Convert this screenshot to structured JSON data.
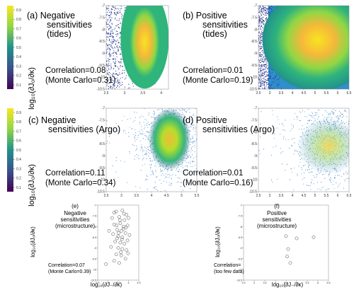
{
  "figure": {
    "ylabel": "log₁₀(∂J₀/∂κ)",
    "xlabel": "log₁₀(∂J₋/∂κ)",
    "colorbar_ticks": [
      "0.9",
      "0.8",
      "0.7",
      "0.6",
      "0.5",
      "0.4",
      "0.3",
      "0.2",
      "0.1"
    ],
    "colors": {
      "yellow": "#f8e621",
      "orange": "#f5b83a",
      "green": "#2fb47c",
      "teal": "#21918c",
      "blue": "#3b528b",
      "purple": "#440154"
    }
  },
  "chart_data": [
    {
      "id": "a",
      "type": "heatmap",
      "label_lines": [
        "(a) Negative",
        "sensitivities",
        "(tides)"
      ],
      "corr_lines": [
        "Correlation=0.08",
        "(Monte Carlo=0.31)"
      ],
      "xlim": [
        2.5,
        4.2
      ],
      "ylim": [
        -10.5,
        -7
      ],
      "xticks": [
        "2.5",
        "3",
        "3.5",
        "4"
      ],
      "yticks": [
        "-7",
        "-7.5",
        "-8",
        "-8.5",
        "-9",
        "-9.5",
        "-10",
        "-10.5"
      ],
      "density_center": [
        3.55,
        -8.4
      ],
      "density_spread": [
        0.28,
        1.0
      ]
    },
    {
      "id": "b",
      "type": "heatmap",
      "label_lines": [
        "(b) Positive",
        "sensitivities",
        "(tides)"
      ],
      "corr_lines": [
        "Correlation=0.01",
        "(Monte Carlo=0.19)"
      ],
      "xlim": [
        2.5,
        6.5
      ],
      "ylim": [
        -10.5,
        -7
      ],
      "xticks": [
        "2.5",
        "3",
        "3.5",
        "4",
        "4.5",
        "5",
        "5.5",
        "6",
        "6.5"
      ],
      "yticks": [
        "-7",
        "-7.5",
        "-8",
        "-8.5",
        "-9",
        "-9.5",
        "-10",
        "-10.5"
      ],
      "density_center": [
        5.3,
        -8.2
      ],
      "density_spread": [
        1.1,
        0.9
      ]
    },
    {
      "id": "c",
      "type": "scatter",
      "label_lines": [
        "(c) Negative",
        "sensitivities (Argo)"
      ],
      "corr_lines": [
        "Correlation=0.11",
        "(Monte Carlo=0.34)"
      ],
      "xlim": [
        2.5,
        5.5
      ],
      "ylim": [
        -10.5,
        -7
      ],
      "xticks": [
        "2.5",
        "3",
        "3.5",
        "4",
        "4.5",
        "5",
        "5.5"
      ],
      "yticks": [
        "-7",
        "-7.5",
        "-8",
        "-8.5",
        "-9",
        "-9.5",
        "-10",
        "-10.5"
      ],
      "density_center": [
        4.6,
        -8.3
      ],
      "density_spread": [
        0.45,
        0.75
      ]
    },
    {
      "id": "d",
      "type": "scatter",
      "label_lines": [
        "(d) Positive",
        "sensitivities (Argo)"
      ],
      "corr_lines": [
        "Correlation=0.01",
        "(Monte Carlo=0.16)"
      ],
      "xlim": [
        2.5,
        6.5
      ],
      "ylim": [
        -10.5,
        -7
      ],
      "xticks": [
        "2.5",
        "3",
        "3.5",
        "4",
        "4.5",
        "5",
        "5.5",
        "6",
        "6.5"
      ],
      "yticks": [
        "-7",
        "-7.5",
        "-8",
        "-8.5",
        "-9",
        "-9.5",
        "-10",
        "-10.5"
      ],
      "density_center": [
        5.6,
        -8.4
      ],
      "density_spread": [
        0.7,
        0.85
      ]
    },
    {
      "id": "e",
      "type": "scatter",
      "label_lines": [
        "Negative",
        "sensitivities",
        "(microstructure)"
      ],
      "panel_tag": "(e)",
      "corr_lines": [
        "Correlation=0.07",
        "(Monte Carlo=0.39)"
      ],
      "xlim": [
        2.5,
        4.5
      ],
      "ylim": [
        -10.5,
        -7
      ],
      "xticks": [
        "2.5",
        "3",
        "3.5",
        "4",
        "4.5"
      ],
      "yticks": [
        "-7",
        "-7.5",
        "-8",
        "-8.5",
        "-9",
        "-9.5",
        "-10",
        "-10.5"
      ],
      "points": [
        [
          3.4,
          -7.3
        ],
        [
          3.7,
          -7.25
        ],
        [
          3.9,
          -7.45
        ],
        [
          3.2,
          -7.6
        ],
        [
          3.55,
          -7.55
        ],
        [
          3.8,
          -7.7
        ],
        [
          4.0,
          -7.6
        ],
        [
          3.3,
          -7.9
        ],
        [
          3.6,
          -7.85
        ],
        [
          3.75,
          -8.0
        ],
        [
          3.95,
          -7.95
        ],
        [
          3.45,
          -8.15
        ],
        [
          3.65,
          -8.2
        ],
        [
          3.85,
          -8.3
        ],
        [
          3.25,
          -8.35
        ],
        [
          3.5,
          -8.45
        ],
        [
          3.7,
          -8.5
        ],
        [
          4.05,
          -8.4
        ],
        [
          3.35,
          -8.7
        ],
        [
          3.6,
          -8.75
        ],
        [
          3.8,
          -8.8
        ],
        [
          3.95,
          -8.65
        ],
        [
          3.15,
          -8.95
        ],
        [
          3.5,
          -9.0
        ],
        [
          3.7,
          -9.05
        ],
        [
          3.9,
          -9.1
        ],
        [
          3.4,
          -9.3
        ],
        [
          3.65,
          -9.35
        ],
        [
          3.85,
          -9.5
        ],
        [
          3.3,
          -9.6
        ],
        [
          3.55,
          -9.7
        ],
        [
          3.75,
          -8.1
        ],
        [
          3.58,
          -7.7
        ],
        [
          3.42,
          -7.95
        ],
        [
          3.68,
          -8.6
        ],
        [
          3.88,
          -8.05
        ],
        [
          3.52,
          -8.3
        ],
        [
          3.78,
          -7.4
        ],
        [
          3.62,
          -9.2
        ],
        [
          3.45,
          -8.55
        ],
        [
          3.05,
          -8.2
        ],
        [
          2.9,
          -9.75
        ],
        [
          3.98,
          -9.25
        ],
        [
          3.3,
          -7.35
        ]
      ]
    },
    {
      "id": "f",
      "type": "scatter",
      "label_lines": [
        "Positive",
        "sensitivities",
        "(microstructure)"
      ],
      "panel_tag": "(f)",
      "corr_lines": [
        "Correlation=",
        "(too few data)"
      ],
      "xlim": [
        2.5,
        6.5
      ],
      "ylim": [
        -10.5,
        -7
      ],
      "xticks": [
        "2.5",
        "3",
        "3.5",
        "4",
        "4.5",
        "5",
        "5.5",
        "6",
        "6.5"
      ],
      "yticks": [
        "-7",
        "-7.5",
        "-8",
        "-8.5",
        "-9",
        "-9.5",
        "-10",
        "-10.5"
      ],
      "points": [
        [
          4.5,
          -8.45
        ],
        [
          5.0,
          -8.55
        ],
        [
          5.8,
          -8.5
        ],
        [
          4.6,
          -9.05
        ],
        [
          4.55,
          -9.4
        ],
        [
          4.7,
          -9.7
        ]
      ]
    }
  ]
}
